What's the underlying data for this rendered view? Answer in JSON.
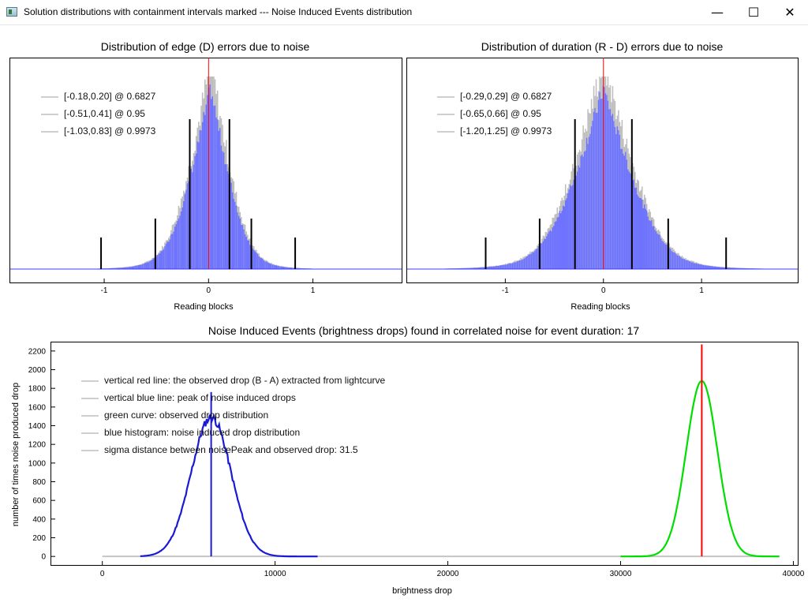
{
  "window": {
    "title": "Solution distributions with containment intervals marked --- Noise Induced Events distribution",
    "minimize_icon": "minimize-icon",
    "maximize_icon": "maximize-icon",
    "close_icon": "close-icon"
  },
  "glyphs": {
    "minimize": "—",
    "maximize": "☐",
    "close": "✕"
  },
  "colors": {
    "histogram_blue": "#6e73ff",
    "histogram_gray": "#bdbdbd",
    "observed_red": "#ff0000",
    "noise_blue": "#1a1ad6",
    "observed_green": "#00dd00",
    "interval_black": "#000000"
  },
  "chart_data": [
    {
      "type": "bar",
      "title": "Distribution of edge (D) errors due to noise",
      "xlabel": "Reading blocks",
      "ylabel": "",
      "xlim": [
        -1.9,
        1.85
      ],
      "xticks": [
        -1,
        0,
        1
      ],
      "xtick_labels": [
        "-1",
        "0",
        "1"
      ],
      "grid": false,
      "legend_position": "top-left",
      "distribution": {
        "center": 0.02,
        "sigma_left": 0.2,
        "sigma_right": 0.18,
        "shape": "laplace-like"
      },
      "observed_line_x": 0,
      "intervals": [
        {
          "label": "[-0.18,0.20] @ 0.6827",
          "low": -0.18,
          "high": 0.2,
          "confidence": 0.6827
        },
        {
          "label": "[-0.51,0.41] @ 0.95",
          "low": -0.51,
          "high": 0.41,
          "confidence": 0.95
        },
        {
          "label": "[-1.03,0.83] @ 0.9973",
          "low": -1.03,
          "high": 0.83,
          "confidence": 0.9973
        }
      ]
    },
    {
      "type": "bar",
      "title": "Distribution of duration (R - D) errors due to noise",
      "xlabel": "Reading blocks",
      "ylabel": "",
      "xlim": [
        -2.0,
        1.98
      ],
      "xticks": [
        -1,
        0,
        1
      ],
      "xtick_labels": [
        "-1",
        "0",
        "1"
      ],
      "grid": false,
      "legend_position": "top-left",
      "distribution": {
        "center": 0.0,
        "sigma_left": 0.3,
        "sigma_right": 0.3,
        "shape": "laplace-like"
      },
      "observed_line_x": 0,
      "intervals": [
        {
          "label": "[-0.29,0.29] @ 0.6827",
          "low": -0.29,
          "high": 0.29,
          "confidence": 0.6827
        },
        {
          "label": "[-0.65,0.66] @ 0.95",
          "low": -0.65,
          "high": 0.66,
          "confidence": 0.95
        },
        {
          "label": "[-1.20,1.25] @ 0.9973",
          "low": -1.2,
          "high": 1.25,
          "confidence": 0.9973
        }
      ]
    },
    {
      "type": "line",
      "title": "Noise Induced Events (brightness drops) found in correlated noise for event duration: 17",
      "xlabel": "brightness drop",
      "ylabel": "number of times noise produced drop",
      "xlim": [
        -3000,
        40300
      ],
      "ylim": [
        -100,
        2300
      ],
      "xticks": [
        0,
        10000,
        20000,
        30000,
        40000
      ],
      "xtick_labels": [
        "0",
        "10000",
        "20000",
        "30000",
        "40000"
      ],
      "yticks": [
        0,
        200,
        400,
        600,
        800,
        1000,
        1200,
        1400,
        1600,
        1800,
        2000,
        2200
      ],
      "ytick_labels": [
        "0",
        "200",
        "400",
        "600",
        "800",
        "1000",
        "1200",
        "1400",
        "1600",
        "1800",
        "2000",
        "2200"
      ],
      "grid": false,
      "legend_position": "top-left",
      "legend": [
        "vertical red line: the observed drop (B - A) extracted from lightcurve",
        "vertical blue line: peak of noise induced drops",
        "green curve: observed drop distribution",
        "blue histogram: noise induced drop distribution",
        "sigma distance between noisePeak and observed drop: 31.5"
      ],
      "series": [
        {
          "name": "blue histogram: noise induced drop distribution",
          "kind": "gaussian",
          "mean": 6300,
          "sigma": 1150,
          "peak": 1490,
          "range": [
            2200,
            12500
          ]
        },
        {
          "name": "green curve: observed drop distribution",
          "kind": "gaussian",
          "mean": 34700,
          "sigma": 900,
          "peak": 1880,
          "range": [
            30000,
            39200
          ]
        }
      ],
      "baseline": {
        "from": 0,
        "to": 39200,
        "value": 0
      },
      "vertical_lines": [
        {
          "name": "vertical blue line: peak of noise induced drops",
          "x": 6300,
          "y_top": 1760
        },
        {
          "name": "vertical red line: the observed drop (B - A) extracted from lightcurve",
          "x": 34700,
          "y_top": 2270
        }
      ]
    }
  ]
}
